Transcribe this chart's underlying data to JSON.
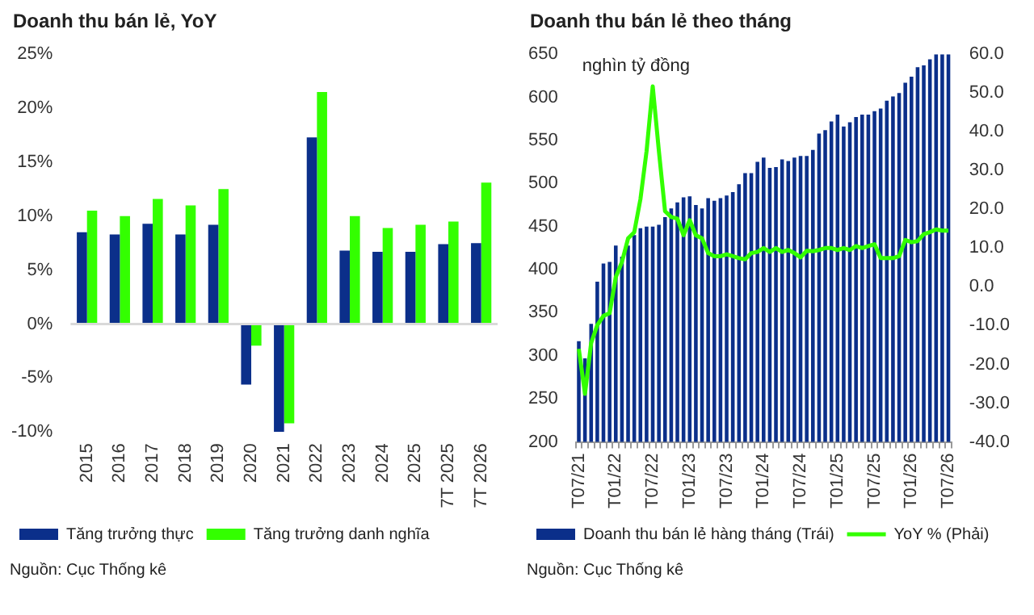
{
  "chart_data": [
    {
      "type": "bar",
      "title": "Doanh thu bán lẻ, YoY",
      "categories": [
        "2015",
        "2016",
        "2017",
        "2018",
        "2019",
        "2020",
        "2021",
        "2022",
        "2023",
        "2024",
        "2025",
        "7T 2025",
        "7T 2026"
      ],
      "series": [
        {
          "name": "Tăng trưởng thực",
          "color": "#0b2f8a",
          "values": [
            8.5,
            8.3,
            9.3,
            8.3,
            9.2,
            -5.6,
            -10,
            17.3,
            6.8,
            6.7,
            6.7,
            7.4,
            7.5
          ]
        },
        {
          "name": "Tăng trưởng danh nghĩa",
          "color": "#33ff00",
          "values": [
            10.5,
            10,
            11.6,
            11,
            12.5,
            -2,
            -9.2,
            21.5,
            10,
            8.9,
            9.2,
            9.5,
            13.1
          ]
        }
      ],
      "ylim": [
        -10,
        25
      ],
      "yticks": [
        {
          "value": -10,
          "label": "-10%"
        },
        {
          "value": -5,
          "label": "-5%"
        },
        {
          "value": 0,
          "label": "0%"
        },
        {
          "value": 5,
          "label": "5%"
        },
        {
          "value": 10,
          "label": "10%"
        },
        {
          "value": 15,
          "label": "15%"
        },
        {
          "value": 20,
          "label": "20%"
        },
        {
          "value": 25,
          "label": "25%"
        }
      ],
      "ref_lines": [
        {
          "axis": "y",
          "value": 0,
          "color": "#d9d9d9"
        }
      ],
      "legend": "bottom",
      "annotations": [
        "Nguồn: Cục Thống kê"
      ]
    },
    {
      "type": "bar",
      "title": "Doanh thu bán lẻ theo tháng",
      "ylabel": "nghìn tỷ đồng",
      "categories": [
        "T07/21",
        null,
        null,
        null,
        null,
        null,
        "T01/22",
        null,
        null,
        null,
        null,
        null,
        "T07/22",
        null,
        null,
        null,
        null,
        null,
        "T01/23",
        null,
        null,
        null,
        null,
        null,
        "T07/23",
        null,
        null,
        null,
        null,
        null,
        "T01/24",
        null,
        null,
        null,
        null,
        null,
        "T07/24",
        null,
        null,
        null,
        null,
        null,
        "T01/25",
        null,
        null,
        null,
        null,
        null,
        "T07/25",
        null,
        null,
        null,
        null,
        null,
        "T01/26",
        null,
        null,
        null,
        null,
        null,
        "T07/26"
      ],
      "series": [
        {
          "name": "Doanh thu bán lẻ hàng tháng (Trái)",
          "color": "#0b2f8a",
          "values": [
            317,
            297,
            337,
            386,
            407,
            409,
            428,
            415,
            428,
            440,
            448,
            450,
            450,
            452,
            461,
            471,
            478,
            484,
            485,
            475,
            471,
            483,
            480,
            483,
            486,
            490,
            499,
            512,
            512,
            525,
            530,
            518,
            519,
            528,
            526,
            530,
            532,
            532,
            539,
            558,
            562,
            572,
            580,
            566,
            571,
            577,
            580,
            580,
            584,
            587,
            596,
            601,
            605,
            617,
            624,
            635,
            637,
            644,
            650,
            650,
            650
          ]
        },
        {
          "name": "YoY % (Phải)",
          "type": "line",
          "axis": "y2",
          "color": "#33ff00",
          "values": [
            -16,
            -27.6,
            -14.5,
            -9.9,
            -7.5,
            -6.8,
            2.5,
            6.4,
            12.5,
            14.1,
            22.6,
            35,
            51.7,
            35,
            19.5,
            18,
            17.6,
            13.3,
            17.2,
            13.3,
            12.5,
            8.7,
            7.9,
            7.9,
            8.4,
            7.9,
            7.4,
            7.1,
            8.7,
            9,
            10,
            9,
            10,
            9,
            9.5,
            8.7,
            7.6,
            9.3,
            9.2,
            9.5,
            10,
            10,
            9.5,
            10,
            9.5,
            10.5,
            10,
            10.5,
            11,
            7.4,
            7.4,
            7.4,
            7.9,
            12.1,
            11.5,
            11.8,
            13.6,
            14.1,
            14.8,
            14.5,
            14.5
          ]
        }
      ],
      "ylim": [
        200,
        650
      ],
      "yticks": [
        200,
        250,
        300,
        350,
        400,
        450,
        500,
        550,
        600,
        650
      ],
      "y2lim": [
        -40,
        60
      ],
      "y2ticks": [
        {
          "value": -40,
          "label": "-40.0"
        },
        {
          "value": -30,
          "label": "-30.0"
        },
        {
          "value": -20,
          "label": "-20.0"
        },
        {
          "value": -10,
          "label": "-10.0"
        },
        {
          "value": 0,
          "label": "0.0"
        },
        {
          "value": 10,
          "label": "10.0"
        },
        {
          "value": 20,
          "label": "20.0"
        },
        {
          "value": 30,
          "label": "30.0"
        },
        {
          "value": 40,
          "label": "40.0"
        },
        {
          "value": 50,
          "label": "50.0"
        },
        {
          "value": 60,
          "label": "60.0"
        }
      ],
      "marker": "none",
      "line_style": "solid",
      "legend": "bottom",
      "annotations": [
        "Nguồn: Cục Thống kê"
      ]
    }
  ]
}
